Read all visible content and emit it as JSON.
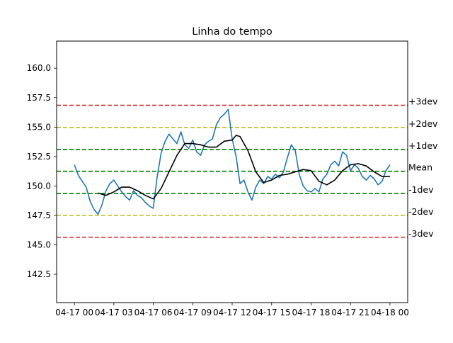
{
  "chart_data": {
    "type": "line",
    "title": "Linha do tempo",
    "xlabel": "",
    "ylabel": "",
    "x_range_hours": [
      -1.35,
      25.35
    ],
    "ylim": [
      140.1,
      162.3
    ],
    "x_ticks": [
      {
        "hour": 0,
        "label": "04-17 00"
      },
      {
        "hour": 3,
        "label": "04-17 03"
      },
      {
        "hour": 6,
        "label": "04-17 06"
      },
      {
        "hour": 9,
        "label": "04-17 09"
      },
      {
        "hour": 12,
        "label": "04-17 12"
      },
      {
        "hour": 15,
        "label": "04-17 15"
      },
      {
        "hour": 18,
        "label": "04-17 18"
      },
      {
        "hour": 21,
        "label": "04-17 21"
      },
      {
        "hour": 24,
        "label": "04-18 00"
      }
    ],
    "y_ticks": [
      142.5,
      145.0,
      147.5,
      150.0,
      152.5,
      155.0,
      157.5,
      160.0
    ],
    "y_tick_labels": [
      "142.5",
      "145.0",
      "147.5",
      "150.0",
      "152.5",
      "155.0",
      "157.5",
      "160.0"
    ],
    "bands": [
      {
        "label": "+3dev",
        "value": 156.85,
        "color": "#d62728"
      },
      {
        "label": "+2dev",
        "value": 154.97,
        "color": "#bcbd22"
      },
      {
        "label": "+1dev",
        "value": 153.1,
        "color": "#008000"
      },
      {
        "label": "Mean",
        "value": 151.25,
        "color": "#008000"
      },
      {
        "label": "-1dev",
        "value": 149.37,
        "color": "#008000"
      },
      {
        "label": "-2dev",
        "value": 147.5,
        "color": "#bcbd22"
      },
      {
        "label": "-3dev",
        "value": 145.65,
        "color": "#d62728"
      }
    ],
    "series": [
      {
        "color": "#1f77b4",
        "x": [
          0,
          0.3,
          0.6,
          0.9,
          1.2,
          1.5,
          1.8,
          2.1,
          2.4,
          2.7,
          3.0,
          3.3,
          3.6,
          3.9,
          4.2,
          4.5,
          4.8,
          5.1,
          5.4,
          5.7,
          6.0,
          6.3,
          6.6,
          6.9,
          7.2,
          7.5,
          7.8,
          8.1,
          8.4,
          8.7,
          9.0,
          9.3,
          9.6,
          9.9,
          10.2,
          10.5,
          10.8,
          11.1,
          11.4,
          11.7,
          12.0,
          12.3,
          12.6,
          12.9,
          13.2,
          13.5,
          13.8,
          14.1,
          14.4,
          14.7,
          15.0,
          15.3,
          15.6,
          15.9,
          16.2,
          16.5,
          16.8,
          17.1,
          17.4,
          17.7,
          18.0,
          18.3,
          18.6,
          18.9,
          19.2,
          19.5,
          19.8,
          20.1,
          20.4,
          20.7,
          21.0,
          21.3,
          21.6,
          21.9,
          22.2,
          22.5,
          22.8,
          23.1,
          23.4,
          23.7,
          24.0
        ],
        "y": [
          151.8,
          150.9,
          150.4,
          149.9,
          148.7,
          148.0,
          147.6,
          148.4,
          149.6,
          150.2,
          150.5,
          150.0,
          149.5,
          149.1,
          148.8,
          149.6,
          149.2,
          149.0,
          148.6,
          148.3,
          148.1,
          150.8,
          152.8,
          153.8,
          154.4,
          154.0,
          153.6,
          154.6,
          153.5,
          153.2,
          153.9,
          152.9,
          152.6,
          153.5,
          153.8,
          154.0,
          155.2,
          155.8,
          156.1,
          156.5,
          154.0,
          152.5,
          150.2,
          150.5,
          149.5,
          148.8,
          149.9,
          150.5,
          150.2,
          150.8,
          150.6,
          151.0,
          150.7,
          151.2,
          152.4,
          153.5,
          153.0,
          151.0,
          150.0,
          149.6,
          149.5,
          149.8,
          149.5,
          150.6,
          151.0,
          151.8,
          152.1,
          151.7,
          152.9,
          152.6,
          151.3,
          151.8,
          151.5,
          150.8,
          150.5,
          150.9,
          150.6,
          150.1,
          150.4,
          151.3,
          151.8
        ]
      },
      {
        "color": "#000000",
        "x": [
          1.8,
          2.4,
          3.0,
          3.6,
          4.2,
          4.8,
          5.4,
          6.0,
          6.6,
          7.2,
          7.8,
          8.4,
          9.0,
          9.6,
          10.2,
          10.8,
          11.4,
          12.0,
          12.3,
          12.6,
          13.2,
          13.8,
          14.4,
          15.0,
          15.6,
          16.2,
          16.8,
          17.4,
          18.0,
          18.6,
          19.2,
          19.8,
          20.4,
          21.0,
          21.6,
          22.2,
          22.8,
          23.4,
          24.0
        ],
        "y": [
          149.4,
          149.2,
          149.5,
          149.9,
          149.9,
          149.6,
          149.2,
          148.9,
          149.8,
          151.2,
          152.6,
          153.6,
          153.6,
          153.5,
          153.3,
          153.3,
          153.8,
          153.9,
          154.3,
          154.2,
          153.0,
          151.2,
          150.3,
          150.5,
          150.9,
          151.0,
          151.2,
          151.4,
          151.3,
          150.4,
          150.1,
          150.5,
          151.3,
          151.8,
          151.9,
          151.7,
          151.2,
          150.8,
          150.8
        ]
      }
    ]
  }
}
